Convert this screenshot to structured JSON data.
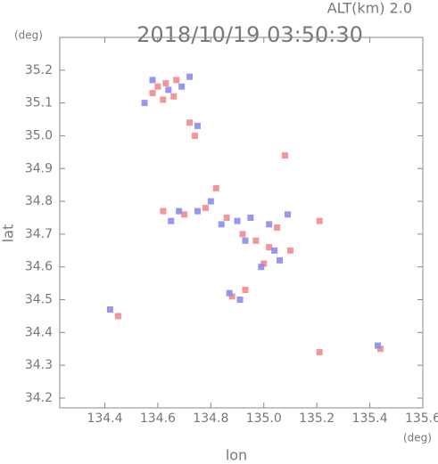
{
  "chart_data": {
    "type": "scatter",
    "title": "2018/10/19 03:50:30",
    "subtitle": "ALT(km) 2.0",
    "x_label": "lon",
    "y_label": "lat",
    "x_unit": "(deg)",
    "y_unit": "(deg)",
    "xlim": [
      134.23,
      135.6
    ],
    "ylim": [
      34.17,
      35.3
    ],
    "xticks": [
      134.4,
      134.6,
      134.8,
      {
        "value": 135,
        "label": "135.0"
      },
      135.2,
      135.4,
      135.6
    ],
    "yticks": [
      34.2,
      34.3,
      34.4,
      34.5,
      34.6,
      34.7,
      34.8,
      34.9,
      {
        "value": 35,
        "label": "35.0"
      },
      35.1,
      35.2
    ],
    "series": [
      {
        "color": "#f08c8c",
        "x": [
          134.6,
          134.63,
          134.66,
          134.62,
          134.67,
          134.58,
          134.72,
          134.74,
          135.08,
          134.62,
          134.7,
          134.78,
          134.82,
          134.86,
          134.92,
          134.97,
          135.02,
          135.0,
          135.05,
          135.1,
          135.21,
          134.88,
          134.93,
          134.45,
          135.21,
          135.44
        ],
        "y": [
          35.15,
          35.16,
          35.12,
          35.11,
          35.17,
          35.13,
          35.04,
          35.0,
          34.94,
          34.77,
          34.76,
          34.78,
          34.84,
          34.75,
          34.7,
          34.68,
          34.66,
          34.61,
          34.72,
          34.65,
          34.74,
          34.51,
          34.53,
          34.45,
          34.34,
          34.35
        ]
      },
      {
        "color": "#8c8cf0",
        "x": [
          134.58,
          134.64,
          134.69,
          134.55,
          134.72,
          134.75,
          134.68,
          134.65,
          134.75,
          134.8,
          134.84,
          134.9,
          134.95,
          134.93,
          135.02,
          135.04,
          135.06,
          134.99,
          134.87,
          134.91,
          134.42,
          135.43,
          135.09
        ],
        "y": [
          35.17,
          35.14,
          35.15,
          35.1,
          35.18,
          35.03,
          34.77,
          34.74,
          34.77,
          34.8,
          34.73,
          34.74,
          34.75,
          34.68,
          34.73,
          34.65,
          34.62,
          34.6,
          34.52,
          34.5,
          34.47,
          34.36,
          34.76
        ]
      }
    ]
  }
}
